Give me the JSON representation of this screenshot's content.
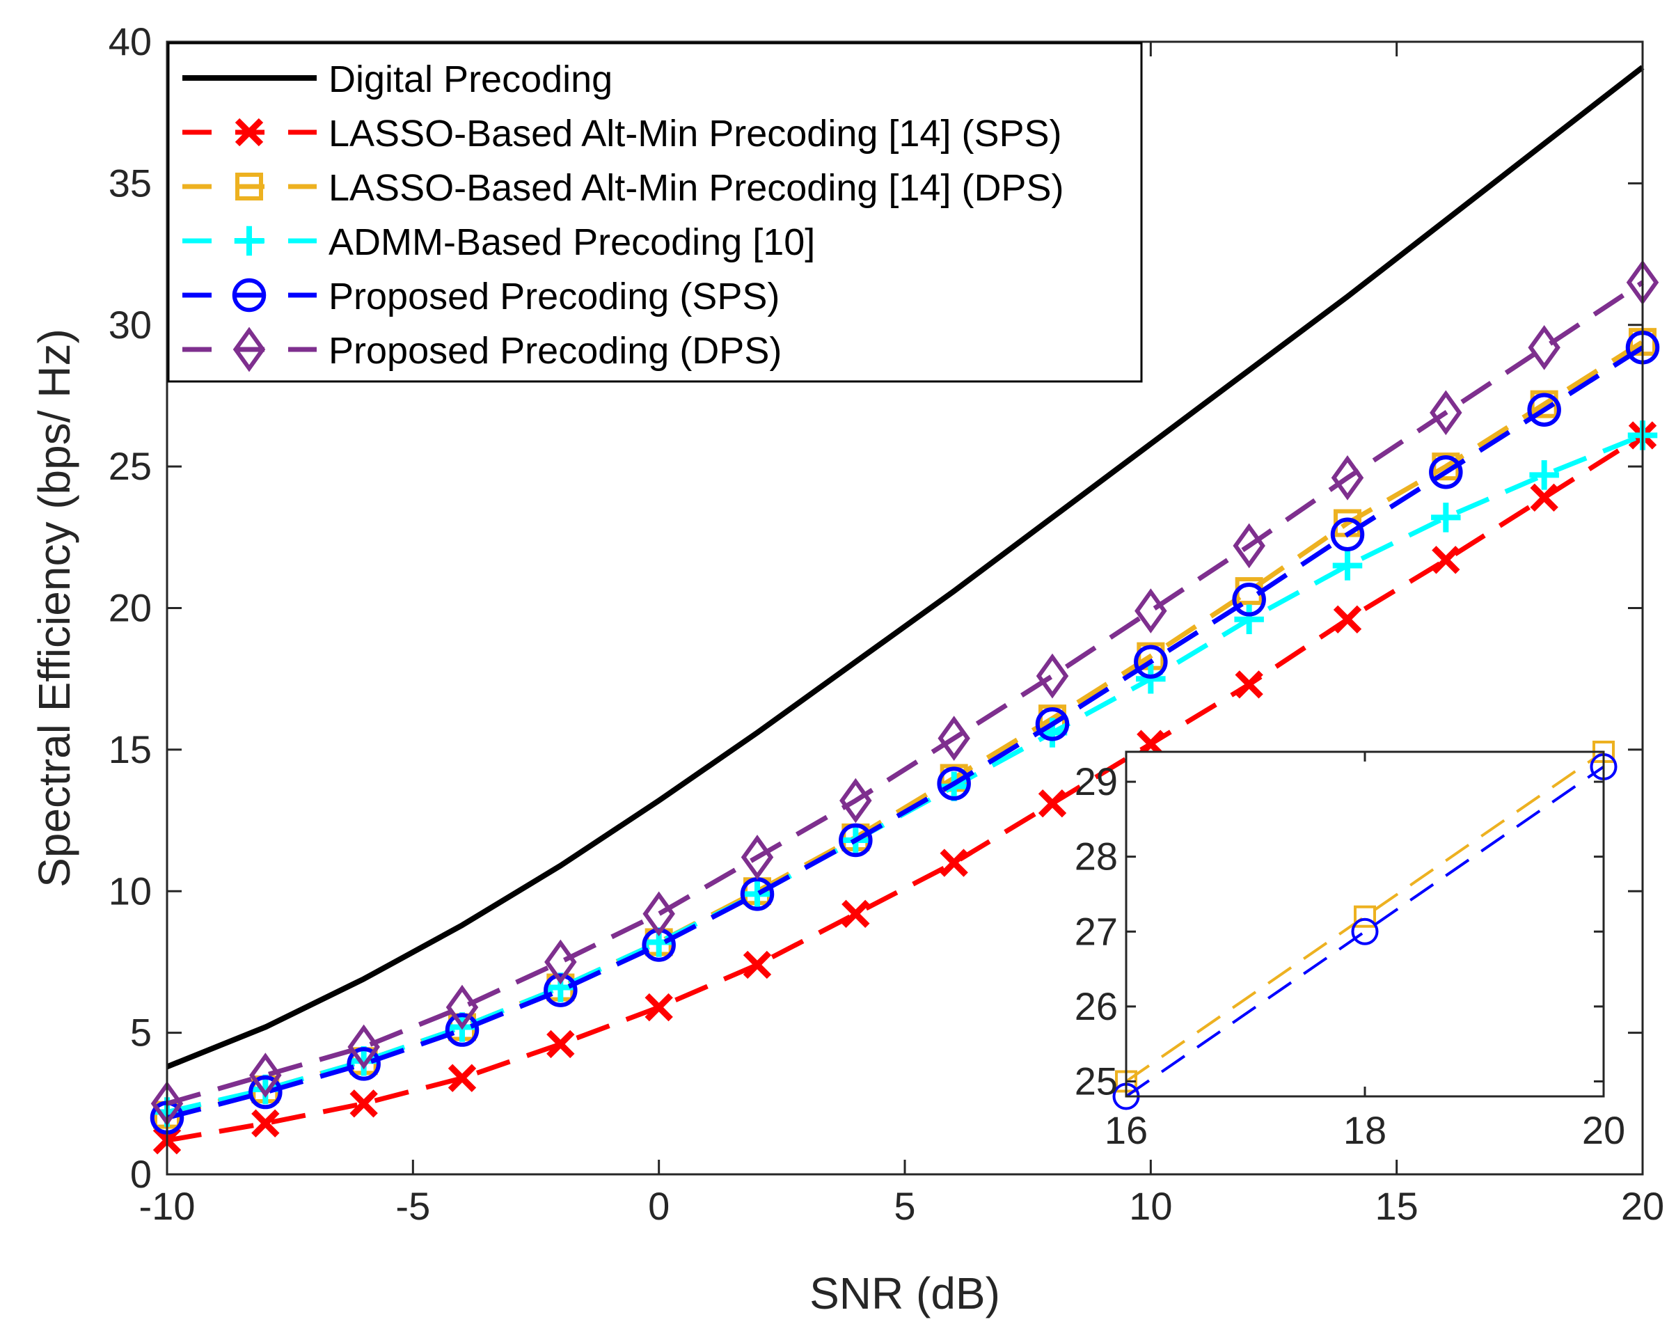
{
  "chart_data": [
    {
      "type": "line",
      "xlabel": "SNR (dB)",
      "ylabel": "Spectral Efficiency (bps/ Hz)",
      "xlim": [
        -10,
        20
      ],
      "ylim": [
        0,
        40
      ],
      "xticks": [
        "-10",
        "-5",
        "0",
        "5",
        "10",
        "15",
        "20"
      ],
      "yticks": [
        "0",
        "5",
        "10",
        "15",
        "20",
        "25",
        "30",
        "35",
        "40"
      ],
      "grid": false,
      "legend_position": "top-left",
      "x": [
        -10,
        -8,
        -6,
        -4,
        -2,
        0,
        2,
        4,
        6,
        8,
        10,
        12,
        14,
        16,
        18,
        20
      ],
      "series": [
        {
          "name": "Digital Precoding",
          "color": "#000000",
          "line": "solid",
          "marker": "none",
          "values": [
            3.8,
            5.2,
            6.9,
            8.8,
            10.9,
            13.2,
            15.6,
            18.1,
            20.6,
            23.2,
            25.8,
            28.4,
            31.0,
            33.7,
            36.4,
            39.1
          ]
        },
        {
          "name": "LASSO-Based Alt-Min Precoding [14] (SPS)",
          "color": "#ff0000",
          "line": "dashed",
          "marker": "x",
          "values": [
            1.2,
            1.8,
            2.5,
            3.4,
            4.6,
            5.9,
            7.4,
            9.2,
            11.0,
            13.1,
            15.2,
            17.3,
            19.6,
            21.7,
            23.9,
            26.1
          ]
        },
        {
          "name": "LASSO-Based Alt-Min Precoding [14] (DPS)",
          "color": "#edb120",
          "line": "dashed",
          "marker": "square",
          "values": [
            2.1,
            3.0,
            4.0,
            5.2,
            6.6,
            8.2,
            10.0,
            11.9,
            14.0,
            16.1,
            18.3,
            20.6,
            23.0,
            25.0,
            27.2,
            29.4
          ]
        },
        {
          "name": "ADMM-Based Precoding [10]",
          "color": "#00ffff",
          "line": "dashed",
          "marker": "plus",
          "values": [
            2.2,
            3.0,
            4.0,
            5.2,
            6.6,
            8.2,
            9.9,
            11.8,
            13.7,
            15.6,
            17.5,
            19.6,
            21.5,
            23.2,
            24.7,
            26.1
          ]
        },
        {
          "name": "Proposed Precoding (SPS)",
          "color": "#0000ff",
          "line": "dashed",
          "marker": "circle",
          "values": [
            2.0,
            2.9,
            3.9,
            5.1,
            6.5,
            8.1,
            9.9,
            11.8,
            13.8,
            15.9,
            18.1,
            20.3,
            22.6,
            24.8,
            27.0,
            29.2
          ]
        },
        {
          "name": "Proposed Precoding (DPS)",
          "color": "#7e2f8e",
          "line": "dashed",
          "marker": "diamond",
          "values": [
            2.5,
            3.5,
            4.5,
            5.9,
            7.5,
            9.2,
            11.2,
            13.2,
            15.4,
            17.6,
            19.9,
            22.2,
            24.6,
            26.9,
            29.2,
            31.5
          ]
        }
      ]
    },
    {
      "type": "line",
      "title": "inset",
      "xlim": [
        16,
        20
      ],
      "ylim": [
        24.8,
        29.4
      ],
      "xticks": [
        "16",
        "18",
        "20"
      ],
      "yticks": [
        "25",
        "26",
        "27",
        "28",
        "29"
      ],
      "x": [
        16,
        18,
        20
      ],
      "series": [
        {
          "name": "LASSO-Based Alt-Min Precoding [14] (DPS)",
          "color": "#edb120",
          "line": "dashed",
          "marker": "square",
          "values": [
            25.0,
            27.2,
            29.4
          ]
        },
        {
          "name": "Proposed Precoding (SPS)",
          "color": "#0000ff",
          "line": "dashed",
          "marker": "circle",
          "values": [
            24.8,
            27.0,
            29.2
          ]
        }
      ]
    }
  ]
}
